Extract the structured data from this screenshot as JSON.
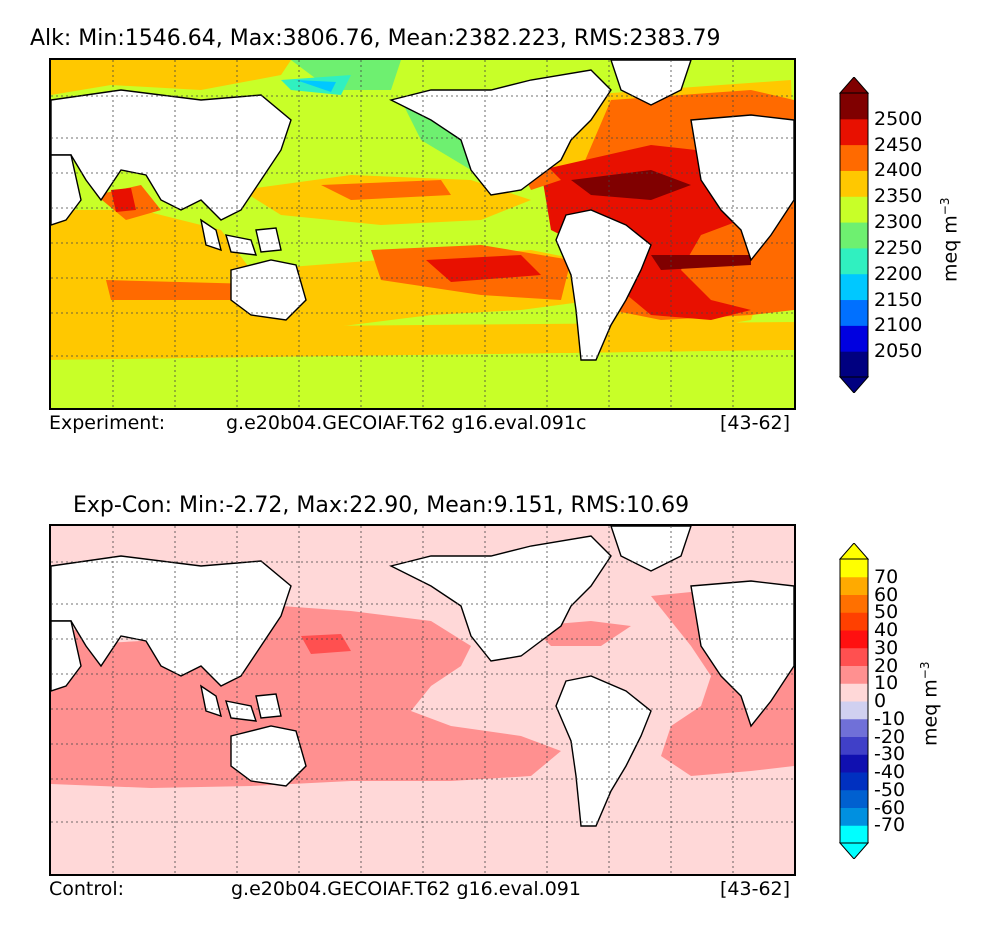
{
  "panels": [
    {
      "title": "Alk: Min:1546.64, Max:3806.76, Mean:2382.223, RMS:2383.79",
      "footer_label": "Experiment:",
      "footer_case": "g.e20b04.GECOIAF.T62 g16.eval.091c",
      "footer_years": "[43-62]",
      "colorbar": {
        "units_base": "meq m",
        "units_exp": "−3",
        "colors": [
          "#000080",
          "#0000e0",
          "#0070ff",
          "#00c8ff",
          "#30f0c0",
          "#6ef070",
          "#c8ff28",
          "#ffc800",
          "#ff6a00",
          "#e81000",
          "#800000"
        ],
        "ticks": [
          "2500",
          "2450",
          "2400",
          "2350",
          "2300",
          "2250",
          "2200",
          "2150",
          "2100",
          "2050"
        ]
      }
    },
    {
      "title": "Exp-Con: Min:-2.72, Max:22.90, Mean:9.151, RMS:10.69",
      "footer_label": "Control:",
      "footer_case": "g.e20b04.GECOIAF.T62 g16.eval.091",
      "footer_years": "[43-62]",
      "colorbar": {
        "units_base": "meq m",
        "units_exp": "−3",
        "colors": [
          "#00ffff",
          "#0090e0",
          "#0060d0",
          "#0030c0",
          "#1010b0",
          "#4040c8",
          "#7070d8",
          "#d0d0f0",
          "#ffd8d8",
          "#ff9090",
          "#ff5050",
          "#ff1010",
          "#ff4000",
          "#ff7000",
          "#ffaa00",
          "#ffff00"
        ],
        "ticks": [
          "70",
          "60",
          "50",
          "40",
          "30",
          "20",
          "10",
          "0",
          "-10",
          "-20",
          "-30",
          "-40",
          "-50",
          "-60",
          "-70"
        ]
      }
    }
  ],
  "chart_data": [
    {
      "type": "heatmap",
      "title": "Alk: Min:1546.64, Max:3806.76, Mean:2382.223, RMS:2383.79",
      "variable": "Alk",
      "stats": {
        "min": 1546.64,
        "max": 3806.76,
        "mean": 2382.223,
        "rms": 2383.79
      },
      "colorbar_levels": [
        2050,
        2100,
        2150,
        2200,
        2250,
        2300,
        2350,
        2400,
        2450,
        2500
      ],
      "colorbar_label": "meq m^-3",
      "extend": "both",
      "x_range_lon": [
        30,
        390
      ],
      "y_range_lat": [
        -80,
        90
      ],
      "grid": true
    },
    {
      "type": "heatmap",
      "title": "Exp-Con: Min:-2.72, Max:22.90, Mean:9.151, RMS:10.69",
      "variable": "Exp-Con",
      "stats": {
        "min": -2.72,
        "max": 22.9,
        "mean": 9.151,
        "rms": 10.69
      },
      "colorbar_levels": [
        -70,
        -60,
        -50,
        -40,
        -30,
        -20,
        -10,
        0,
        10,
        20,
        30,
        40,
        50,
        60,
        70
      ],
      "colorbar_label": "meq m^-3",
      "extend": "both",
      "x_range_lon": [
        30,
        390
      ],
      "y_range_lat": [
        -80,
        90
      ],
      "grid": true
    }
  ]
}
